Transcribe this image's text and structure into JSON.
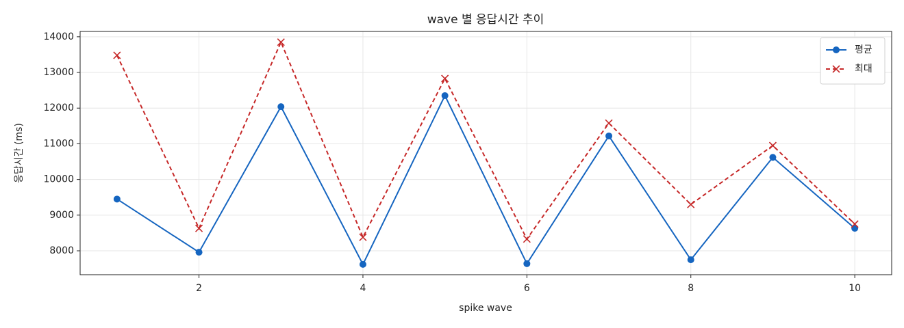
{
  "chart_data": {
    "type": "line",
    "title": "wave 별 응답시간 추이",
    "x_label": "spike wave",
    "y_label": "응답시간 (ms)",
    "x": [
      1,
      2,
      3,
      4,
      5,
      6,
      7,
      8,
      9,
      10
    ],
    "series": [
      {
        "name": "평균",
        "color": "#1565c0",
        "marker": "circle",
        "dash": "solid",
        "values": [
          9450,
          7960,
          12040,
          7620,
          12350,
          7640,
          11220,
          7750,
          10620,
          8630
        ]
      },
      {
        "name": "최대",
        "color": "#c62828",
        "marker": "x",
        "dash": "dashed",
        "values": [
          13480,
          8630,
          13850,
          8380,
          12830,
          8330,
          11580,
          9300,
          10950,
          8750
        ]
      }
    ],
    "xlim": [
      0.55,
      10.45
    ],
    "xticks": [
      2,
      4,
      6,
      8,
      10
    ],
    "ylim": [
      7330,
      14150
    ],
    "yticks": [
      8000,
      9000,
      10000,
      11000,
      12000,
      13000,
      14000
    ],
    "grid": true,
    "legend": "upper right"
  }
}
